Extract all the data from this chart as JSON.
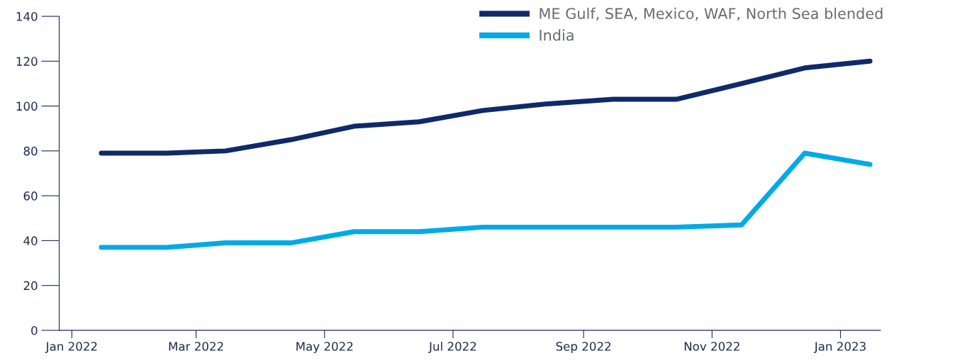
{
  "chart_data": {
    "type": "line",
    "x": [
      "2022-01-15",
      "2022-02-15",
      "2022-03-15",
      "2022-04-15",
      "2022-05-15",
      "2022-06-15",
      "2022-07-15",
      "2022-08-15",
      "2022-09-15",
      "2022-10-15",
      "2022-11-15",
      "2022-12-15",
      "2023-01-15"
    ],
    "series": [
      {
        "name": "ME Gulf, SEA, Mexico, WAF, North Sea blended",
        "color": "#0f2a6b",
        "values": [
          79,
          79,
          80,
          85,
          91,
          93,
          98,
          101,
          103,
          103,
          110,
          117,
          120
        ]
      },
      {
        "name": "India",
        "color": "#00aae7",
        "values": [
          37,
          37,
          39,
          39,
          44,
          44,
          46,
          46,
          46,
          46,
          47,
          79,
          74
        ]
      }
    ],
    "xlim": [
      "2021-12-26",
      "2023-01-20"
    ],
    "xticks": [
      {
        "value": "2022-01-01",
        "label": "Jan 2022"
      },
      {
        "value": "2022-03-01",
        "label": "Mar 2022"
      },
      {
        "value": "2022-05-01",
        "label": "May 2022"
      },
      {
        "value": "2022-07-01",
        "label": "Jul 2022"
      },
      {
        "value": "2022-09-01",
        "label": "Sep 2022"
      },
      {
        "value": "2022-11-01",
        "label": "Nov 2022"
      },
      {
        "value": "2023-01-01",
        "label": "Jan 2023"
      }
    ],
    "ylim": [
      0,
      140
    ],
    "yticks": [
      0,
      20,
      40,
      60,
      80,
      100,
      120,
      140
    ],
    "grid": false,
    "legend": "top right",
    "marker": "none",
    "line_style": "solid"
  }
}
